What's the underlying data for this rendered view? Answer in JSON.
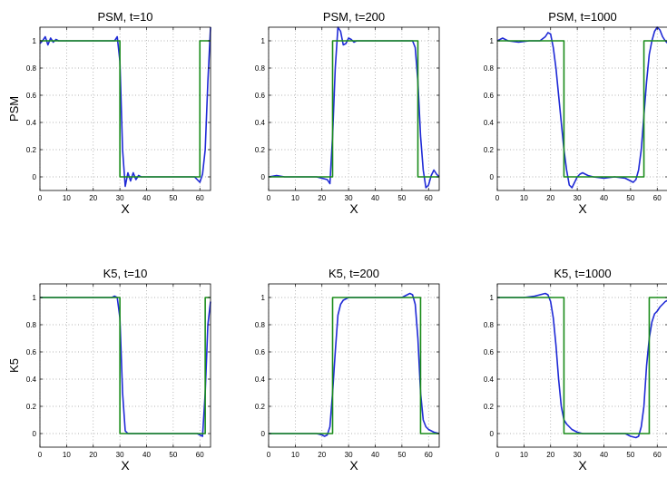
{
  "figure": {
    "row_labels": [
      "PSM",
      "K5"
    ]
  },
  "chart_data": [
    {
      "type": "line",
      "title": "PSM, t=10",
      "xlabel": "X",
      "ylabel": "PSM",
      "xlim": [
        0,
        64
      ],
      "ylim": [
        -0.1,
        1.1
      ],
      "xticks": [
        0,
        10,
        20,
        30,
        40,
        50,
        60
      ],
      "yticks": [
        0,
        0.2,
        0.4,
        0.6,
        0.8,
        1
      ],
      "grid": true,
      "series": [
        {
          "color": "#1f2ad6",
          "x": [
            0,
            1,
            2,
            3,
            4,
            5,
            6,
            7,
            10,
            20,
            28,
            29,
            30,
            31,
            32,
            33,
            34,
            35,
            36,
            37,
            38,
            40,
            50,
            58,
            59,
            60,
            61,
            62,
            63,
            64
          ],
          "y": [
            0.98,
            1.0,
            1.03,
            0.97,
            1.02,
            0.99,
            1.01,
            1.0,
            1.0,
            1.0,
            1.0,
            1.03,
            0.85,
            0.2,
            -0.07,
            0.03,
            -0.03,
            0.03,
            -0.02,
            0.01,
            0.0,
            0.0,
            0.0,
            0.0,
            -0.02,
            -0.04,
            0.02,
            0.2,
            0.7,
            1.1
          ]
        },
        {
          "color": "#1a8c1a",
          "x": [
            0,
            30,
            30,
            60,
            60,
            64
          ],
          "y": [
            1,
            1,
            0,
            0,
            1,
            1
          ]
        }
      ]
    },
    {
      "type": "line",
      "title": "PSM, t=200",
      "xlabel": "X",
      "ylabel": "",
      "xlim": [
        0,
        64
      ],
      "ylim": [
        -0.1,
        1.1
      ],
      "xticks": [
        0,
        10,
        20,
        30,
        40,
        50,
        60
      ],
      "yticks": [
        0,
        0.2,
        0.4,
        0.6,
        0.8,
        1
      ],
      "grid": true,
      "series": [
        {
          "color": "#1f2ad6",
          "x": [
            0,
            3,
            6,
            10,
            18,
            22,
            23,
            24,
            25,
            26,
            27,
            28,
            29,
            30,
            31,
            32,
            33,
            35,
            40,
            50,
            54,
            55,
            56,
            57,
            58,
            59,
            60,
            61,
            62,
            63,
            64
          ],
          "y": [
            0.0,
            0.01,
            0.0,
            0.0,
            0.0,
            -0.02,
            -0.05,
            0.3,
            0.8,
            1.1,
            1.07,
            0.97,
            0.98,
            1.02,
            1.01,
            0.99,
            1.0,
            1.0,
            1.0,
            1.0,
            1.0,
            0.95,
            0.7,
            0.3,
            0.05,
            -0.08,
            -0.06,
            0.01,
            0.05,
            0.02,
            0.0
          ]
        },
        {
          "color": "#1a8c1a",
          "x": [
            0,
            24,
            24,
            56,
            56,
            64
          ],
          "y": [
            0,
            0,
            1,
            1,
            0,
            0
          ]
        }
      ]
    },
    {
      "type": "line",
      "title": "PSM, t=1000",
      "xlabel": "X",
      "ylabel": "",
      "xlim": [
        0,
        64
      ],
      "ylim": [
        -0.1,
        1.1
      ],
      "xticks": [
        0,
        10,
        20,
        30,
        40,
        50,
        60
      ],
      "yticks": [
        0,
        0.2,
        0.4,
        0.6,
        0.8,
        1
      ],
      "grid": true,
      "series": [
        {
          "color": "#1f2ad6",
          "x": [
            0,
            2,
            4,
            8,
            12,
            16,
            18,
            19,
            20,
            21,
            22,
            23,
            24,
            25,
            26,
            27,
            28,
            29,
            30,
            31,
            32,
            34,
            36,
            40,
            44,
            48,
            50,
            51,
            52,
            53,
            54,
            55,
            56,
            57,
            58,
            59,
            60,
            61,
            62,
            63,
            64
          ],
          "y": [
            1.0,
            1.02,
            1.0,
            0.99,
            1.0,
            1.0,
            1.03,
            1.06,
            1.05,
            0.95,
            0.8,
            0.6,
            0.4,
            0.2,
            0.05,
            -0.06,
            -0.08,
            -0.04,
            0.0,
            0.02,
            0.03,
            0.01,
            0.0,
            -0.01,
            0.0,
            -0.01,
            -0.03,
            -0.04,
            -0.02,
            0.05,
            0.2,
            0.45,
            0.7,
            0.9,
            1.0,
            1.07,
            1.1,
            1.08,
            1.03,
            1.0,
            0.98
          ]
        },
        {
          "color": "#1a8c1a",
          "x": [
            0,
            25,
            25,
            55,
            55,
            64
          ],
          "y": [
            1,
            1,
            0,
            0,
            1,
            1
          ]
        }
      ]
    },
    {
      "type": "line",
      "title": "K5, t=10",
      "xlabel": "X",
      "ylabel": "K5",
      "xlim": [
        0,
        64
      ],
      "ylim": [
        -0.1,
        1.1
      ],
      "xticks": [
        0,
        10,
        20,
        30,
        40,
        50,
        60
      ],
      "yticks": [
        0,
        0.2,
        0.4,
        0.6,
        0.8,
        1
      ],
      "grid": true,
      "series": [
        {
          "color": "#1f2ad6",
          "x": [
            0,
            10,
            20,
            27,
            28,
            29,
            30,
            31,
            32,
            33,
            40,
            50,
            59,
            60,
            61,
            62,
            63,
            64
          ],
          "y": [
            1.0,
            1.0,
            1.0,
            1.0,
            1.01,
            1.0,
            0.85,
            0.3,
            0.02,
            0.0,
            0.0,
            0.0,
            0.0,
            -0.01,
            -0.02,
            0.3,
            0.8,
            0.97
          ]
        },
        {
          "color": "#1a8c1a",
          "x": [
            0,
            30,
            30,
            62,
            62,
            64
          ],
          "y": [
            1,
            1,
            0,
            0,
            1,
            1
          ]
        }
      ]
    },
    {
      "type": "line",
      "title": "K5, t=200",
      "xlabel": "X",
      "ylabel": "",
      "xlim": [
        0,
        64
      ],
      "ylim": [
        -0.1,
        1.1
      ],
      "xticks": [
        0,
        10,
        20,
        30,
        40,
        50,
        60
      ],
      "yticks": [
        0,
        0.2,
        0.4,
        0.6,
        0.8,
        1
      ],
      "grid": true,
      "series": [
        {
          "color": "#1f2ad6",
          "x": [
            0,
            10,
            18,
            20,
            21,
            22,
            23,
            24,
            25,
            26,
            27,
            28,
            30,
            35,
            40,
            45,
            50,
            51,
            52,
            53,
            54,
            55,
            56,
            57,
            58,
            59,
            60,
            62,
            64
          ],
          "y": [
            0.0,
            0.0,
            0.0,
            -0.01,
            -0.02,
            -0.01,
            0.05,
            0.3,
            0.6,
            0.87,
            0.95,
            0.98,
            1.0,
            1.0,
            1.0,
            1.0,
            1.0,
            1.01,
            1.02,
            1.03,
            1.02,
            0.95,
            0.7,
            0.3,
            0.1,
            0.05,
            0.03,
            0.01,
            0.0
          ]
        },
        {
          "color": "#1a8c1a",
          "x": [
            0,
            24,
            24,
            57,
            57,
            64
          ],
          "y": [
            0,
            0,
            1,
            1,
            0,
            0
          ]
        }
      ]
    },
    {
      "type": "line",
      "title": "K5, t=1000",
      "xlabel": "X",
      "ylabel": "",
      "xlim": [
        0,
        64
      ],
      "ylim": [
        -0.1,
        1.1
      ],
      "xticks": [
        0,
        10,
        20,
        30,
        40,
        50,
        60
      ],
      "yticks": [
        0,
        0.2,
        0.4,
        0.6,
        0.8,
        1
      ],
      "grid": true,
      "series": [
        {
          "color": "#1f2ad6",
          "x": [
            0,
            5,
            10,
            14,
            16,
            18,
            19,
            20,
            21,
            22,
            23,
            24,
            25,
            26,
            27,
            28,
            30,
            32,
            35,
            40,
            45,
            48,
            50,
            52,
            53,
            54,
            55,
            56,
            57,
            58,
            59,
            60,
            61,
            62,
            63,
            64
          ],
          "y": [
            1.0,
            1.0,
            1.0,
            1.01,
            1.02,
            1.03,
            1.02,
            0.97,
            0.85,
            0.65,
            0.4,
            0.2,
            0.1,
            0.07,
            0.05,
            0.03,
            0.01,
            0.0,
            0.0,
            0.0,
            0.0,
            0.0,
            -0.02,
            -0.03,
            -0.02,
            0.05,
            0.2,
            0.5,
            0.7,
            0.82,
            0.88,
            0.9,
            0.93,
            0.95,
            0.97,
            0.98
          ]
        },
        {
          "color": "#1a8c1a",
          "x": [
            0,
            25,
            25,
            57,
            57,
            64
          ],
          "y": [
            1,
            1,
            0,
            0,
            1,
            1
          ]
        }
      ]
    }
  ]
}
